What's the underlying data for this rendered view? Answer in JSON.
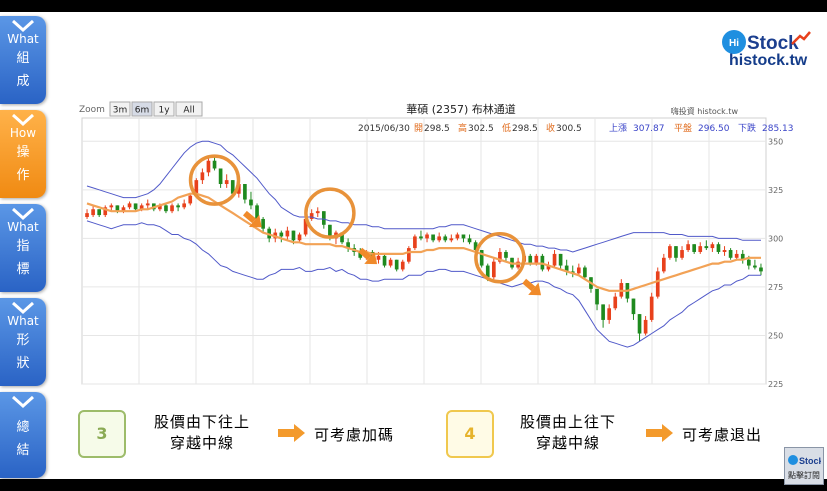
{
  "nav": [
    {
      "en": "What",
      "zh": [
        "組",
        "成"
      ],
      "active": false
    },
    {
      "en": "How",
      "zh": [
        "操",
        "作"
      ],
      "active": true
    },
    {
      "en": "What",
      "zh": [
        "指",
        "標"
      ],
      "active": false
    },
    {
      "en": "What",
      "zh": [
        "形",
        "狀"
      ],
      "active": false
    },
    {
      "en": "",
      "zh": [
        "總",
        "結"
      ],
      "active": false
    }
  ],
  "logo": {
    "url_text": "histock.tw"
  },
  "chart_data": {
    "type": "candlestick",
    "title": "華碩 (2357) 布林通道",
    "watermark": "嗨投資 histock.tw",
    "zoom": {
      "label": "Zoom",
      "options": [
        "3m",
        "6m",
        "1y",
        "All"
      ],
      "selected": "6m"
    },
    "info": {
      "date": "2015/06/30",
      "open_label": "開",
      "open": "298.5",
      "high_label": "高",
      "high": "302.5",
      "low_label": "低",
      "low": "298.5",
      "close_label": "收",
      "close": "300.5",
      "upper_label": "上漲",
      "upper": "307.87",
      "mid_label": "平盤",
      "mid": "296.50",
      "lower_label": "下跌",
      "lower": "285.13"
    },
    "ylim": [
      225,
      362
    ],
    "yticks": [
      225,
      250,
      275,
      300,
      325,
      350
    ],
    "colors": {
      "up": "#e8411c",
      "down": "#1f8a1f",
      "band": "#5059c9",
      "mid": "#f2a256"
    },
    "candles": [
      [
        311,
        315,
        310,
        313
      ],
      [
        312,
        317,
        311,
        315
      ],
      [
        315,
        315,
        311,
        312
      ],
      [
        312,
        317,
        311,
        316
      ],
      [
        316,
        318,
        314,
        317
      ],
      [
        317,
        317,
        313,
        314
      ],
      [
        314,
        317,
        313,
        316
      ],
      [
        316,
        319,
        315,
        318
      ],
      [
        318,
        318,
        314,
        315
      ],
      [
        315,
        318,
        314,
        317
      ],
      [
        317,
        320,
        315,
        318
      ],
      [
        318,
        318,
        314,
        315
      ],
      [
        315,
        318,
        314,
        317
      ],
      [
        317,
        318,
        313,
        314
      ],
      [
        314,
        318,
        313,
        317
      ],
      [
        317,
        318,
        314,
        316
      ],
      [
        316,
        320,
        315,
        318
      ],
      [
        318,
        323,
        317,
        322
      ],
      [
        322,
        331,
        321,
        330
      ],
      [
        330,
        336,
        328,
        334
      ],
      [
        334,
        342,
        332,
        340
      ],
      [
        340,
        342,
        335,
        336
      ],
      [
        336,
        336,
        326,
        328
      ],
      [
        328,
        333,
        326,
        330
      ],
      [
        330,
        330,
        321,
        323
      ],
      [
        323,
        330,
        321,
        328
      ],
      [
        328,
        328,
        318,
        320
      ],
      [
        320,
        324,
        315,
        317
      ],
      [
        317,
        318,
        308,
        310
      ],
      [
        310,
        311,
        303,
        305
      ],
      [
        305,
        306,
        298,
        300
      ],
      [
        300,
        305,
        298,
        303
      ],
      [
        303,
        304,
        298,
        301
      ],
      [
        301,
        306,
        299,
        304
      ],
      [
        304,
        304,
        297,
        299
      ],
      [
        299,
        303,
        298,
        302
      ],
      [
        302,
        312,
        301,
        310
      ],
      [
        310,
        315,
        309,
        313
      ],
      [
        313,
        316,
        311,
        314
      ],
      [
        314,
        314,
        305,
        307
      ],
      [
        307,
        307,
        299,
        300
      ],
      [
        300,
        304,
        297,
        303
      ],
      [
        303,
        303,
        297,
        298
      ],
      [
        298,
        300,
        293,
        295
      ],
      [
        295,
        297,
        291,
        293
      ],
      [
        293,
        295,
        289,
        290
      ],
      [
        290,
        294,
        289,
        293
      ],
      [
        293,
        294,
        288,
        289
      ],
      [
        289,
        293,
        287,
        291
      ],
      [
        291,
        292,
        285,
        286
      ],
      [
        286,
        290,
        285,
        289
      ],
      [
        289,
        289,
        283,
        284
      ],
      [
        284,
        289,
        283,
        288
      ],
      [
        288,
        296,
        287,
        295
      ],
      [
        295,
        302,
        294,
        301
      ],
      [
        301,
        304,
        299,
        300
      ],
      [
        300,
        303,
        298,
        302
      ],
      [
        302,
        302,
        298,
        299
      ],
      [
        299,
        303,
        298,
        301
      ],
      [
        301,
        302,
        298,
        299
      ],
      [
        299,
        302,
        298,
        300
      ],
      [
        300,
        303,
        299,
        302
      ],
      [
        302,
        302,
        298,
        300
      ],
      [
        300,
        302,
        297,
        298
      ],
      [
        298,
        299,
        293,
        294
      ],
      [
        294,
        294,
        285,
        286
      ],
      [
        286,
        287,
        278,
        280
      ],
      [
        280,
        290,
        279,
        288
      ],
      [
        288,
        295,
        287,
        293
      ],
      [
        293,
        294,
        288,
        290
      ],
      [
        290,
        290,
        284,
        285
      ],
      [
        285,
        290,
        284,
        288
      ],
      [
        288,
        293,
        287,
        291
      ],
      [
        291,
        292,
        286,
        287
      ],
      [
        287,
        292,
        286,
        291
      ],
      [
        291,
        292,
        283,
        284
      ],
      [
        284,
        288,
        283,
        286
      ],
      [
        286,
        294,
        285,
        292
      ],
      [
        292,
        292,
        284,
        286
      ],
      [
        286,
        289,
        281,
        283
      ],
      [
        283,
        286,
        280,
        282
      ],
      [
        282,
        287,
        281,
        285
      ],
      [
        285,
        286,
        279,
        280
      ],
      [
        280,
        280,
        272,
        274
      ],
      [
        274,
        274,
        263,
        266
      ],
      [
        266,
        266,
        254,
        258
      ],
      [
        258,
        266,
        256,
        264
      ],
      [
        264,
        272,
        263,
        270
      ],
      [
        270,
        279,
        269,
        277
      ],
      [
        277,
        277,
        267,
        269
      ],
      [
        269,
        269,
        258,
        261
      ],
      [
        261,
        261,
        247,
        251
      ],
      [
        251,
        260,
        250,
        258
      ],
      [
        258,
        272,
        257,
        270
      ],
      [
        270,
        285,
        269,
        283
      ],
      [
        283,
        292,
        282,
        290
      ],
      [
        290,
        297,
        289,
        296
      ],
      [
        296,
        296,
        288,
        290
      ],
      [
        290,
        296,
        289,
        294
      ],
      [
        294,
        299,
        293,
        297
      ],
      [
        297,
        297,
        292,
        293
      ],
      [
        293,
        298,
        292,
        296
      ],
      [
        296,
        299,
        294,
        295
      ],
      [
        295,
        298,
        293,
        297
      ],
      [
        297,
        298,
        292,
        293
      ],
      [
        293,
        296,
        291,
        294
      ],
      [
        294,
        295,
        289,
        290
      ],
      [
        290,
        294,
        289,
        292
      ],
      [
        292,
        294,
        287,
        289
      ],
      [
        289,
        291,
        284,
        286
      ],
      [
        286,
        289,
        284,
        285
      ],
      [
        285,
        287,
        281,
        283
      ]
    ],
    "band_upper": [
      327,
      326,
      325,
      324,
      323,
      322,
      321,
      321,
      321,
      322,
      323,
      325,
      328,
      332,
      336,
      340,
      344,
      347,
      349,
      350,
      350,
      349,
      348,
      345,
      343,
      340,
      337,
      334,
      331,
      327,
      323,
      320,
      316,
      314,
      312,
      311,
      311,
      311,
      310,
      310,
      309,
      309,
      308,
      308,
      307,
      307,
      307,
      306,
      306,
      305,
      305,
      305,
      305,
      305,
      305,
      305,
      305,
      305,
      306,
      306,
      307,
      307,
      307,
      306,
      305,
      304,
      303,
      302,
      301,
      300,
      299,
      298,
      297,
      297,
      296,
      296,
      295,
      295,
      294,
      294,
      293,
      294,
      295,
      296,
      297,
      298,
      299,
      300,
      301,
      302,
      303,
      303,
      303,
      303,
      303,
      303,
      302,
      302,
      302,
      301,
      301,
      301,
      301,
      301,
      300,
      300,
      300,
      300,
      299,
      299,
      299,
      299
    ],
    "band_middle": [
      318,
      317,
      316,
      315,
      314,
      314,
      314,
      314,
      314,
      315,
      315,
      316,
      317,
      318,
      319,
      321,
      322,
      323,
      323,
      322,
      321,
      319,
      317,
      315,
      313,
      311,
      309,
      307,
      305,
      303,
      302,
      301,
      300,
      299,
      298,
      298,
      297,
      297,
      297,
      297,
      297,
      296,
      296,
      295,
      294,
      293,
      293,
      292,
      292,
      292,
      292,
      292,
      292,
      293,
      293,
      293,
      294,
      294,
      295,
      295,
      295,
      295,
      295,
      294,
      293,
      292,
      291,
      290,
      289,
      288,
      287,
      287,
      287,
      287,
      287,
      287,
      286,
      285,
      284,
      283,
      282,
      281,
      279,
      277,
      275,
      274,
      273,
      273,
      273,
      273,
      274,
      275,
      276,
      277,
      278,
      279,
      280,
      281,
      282,
      283,
      284,
      285,
      286,
      287,
      287,
      288,
      288,
      289,
      289,
      290,
      290,
      290
    ],
    "band_lower": [
      309,
      308,
      307,
      306,
      305,
      306,
      307,
      307,
      307,
      308,
      307,
      307,
      306,
      304,
      302,
      302,
      300,
      299,
      297,
      294,
      292,
      289,
      286,
      285,
      283,
      282,
      281,
      280,
      279,
      279,
      281,
      282,
      284,
      284,
      284,
      285,
      283,
      283,
      284,
      284,
      285,
      283,
      284,
      282,
      281,
      279,
      279,
      278,
      278,
      279,
      279,
      279,
      279,
      281,
      281,
      281,
      283,
      283,
      284,
      284,
      283,
      283,
      283,
      282,
      281,
      280,
      279,
      278,
      277,
      276,
      275,
      276,
      277,
      277,
      278,
      278,
      277,
      275,
      274,
      272,
      271,
      268,
      263,
      258,
      253,
      250,
      247,
      246,
      245,
      244,
      245,
      247,
      249,
      251,
      253,
      255,
      258,
      260,
      262,
      265,
      267,
      269,
      271,
      273,
      274,
      276,
      276,
      278,
      279,
      281,
      281,
      281
    ],
    "circles": [
      {
        "i": 21,
        "v": 330
      },
      {
        "i": 40,
        "v": 313
      },
      {
        "i": 68,
        "v": 290
      }
    ],
    "arrows": [
      {
        "i": 26,
        "v": 313
      },
      {
        "i": 45,
        "v": 294
      },
      {
        "i": 72,
        "v": 278
      }
    ]
  },
  "steps": [
    {
      "num": "3",
      "line1": "股價由下往上",
      "line2": "穿越中線",
      "action": "可考慮加碼"
    },
    {
      "num": "4",
      "line1": "股價由上往下",
      "line2": "穿越中線",
      "action": "可考慮退出"
    }
  ],
  "subscribe": {
    "label": "點擊訂閱"
  }
}
